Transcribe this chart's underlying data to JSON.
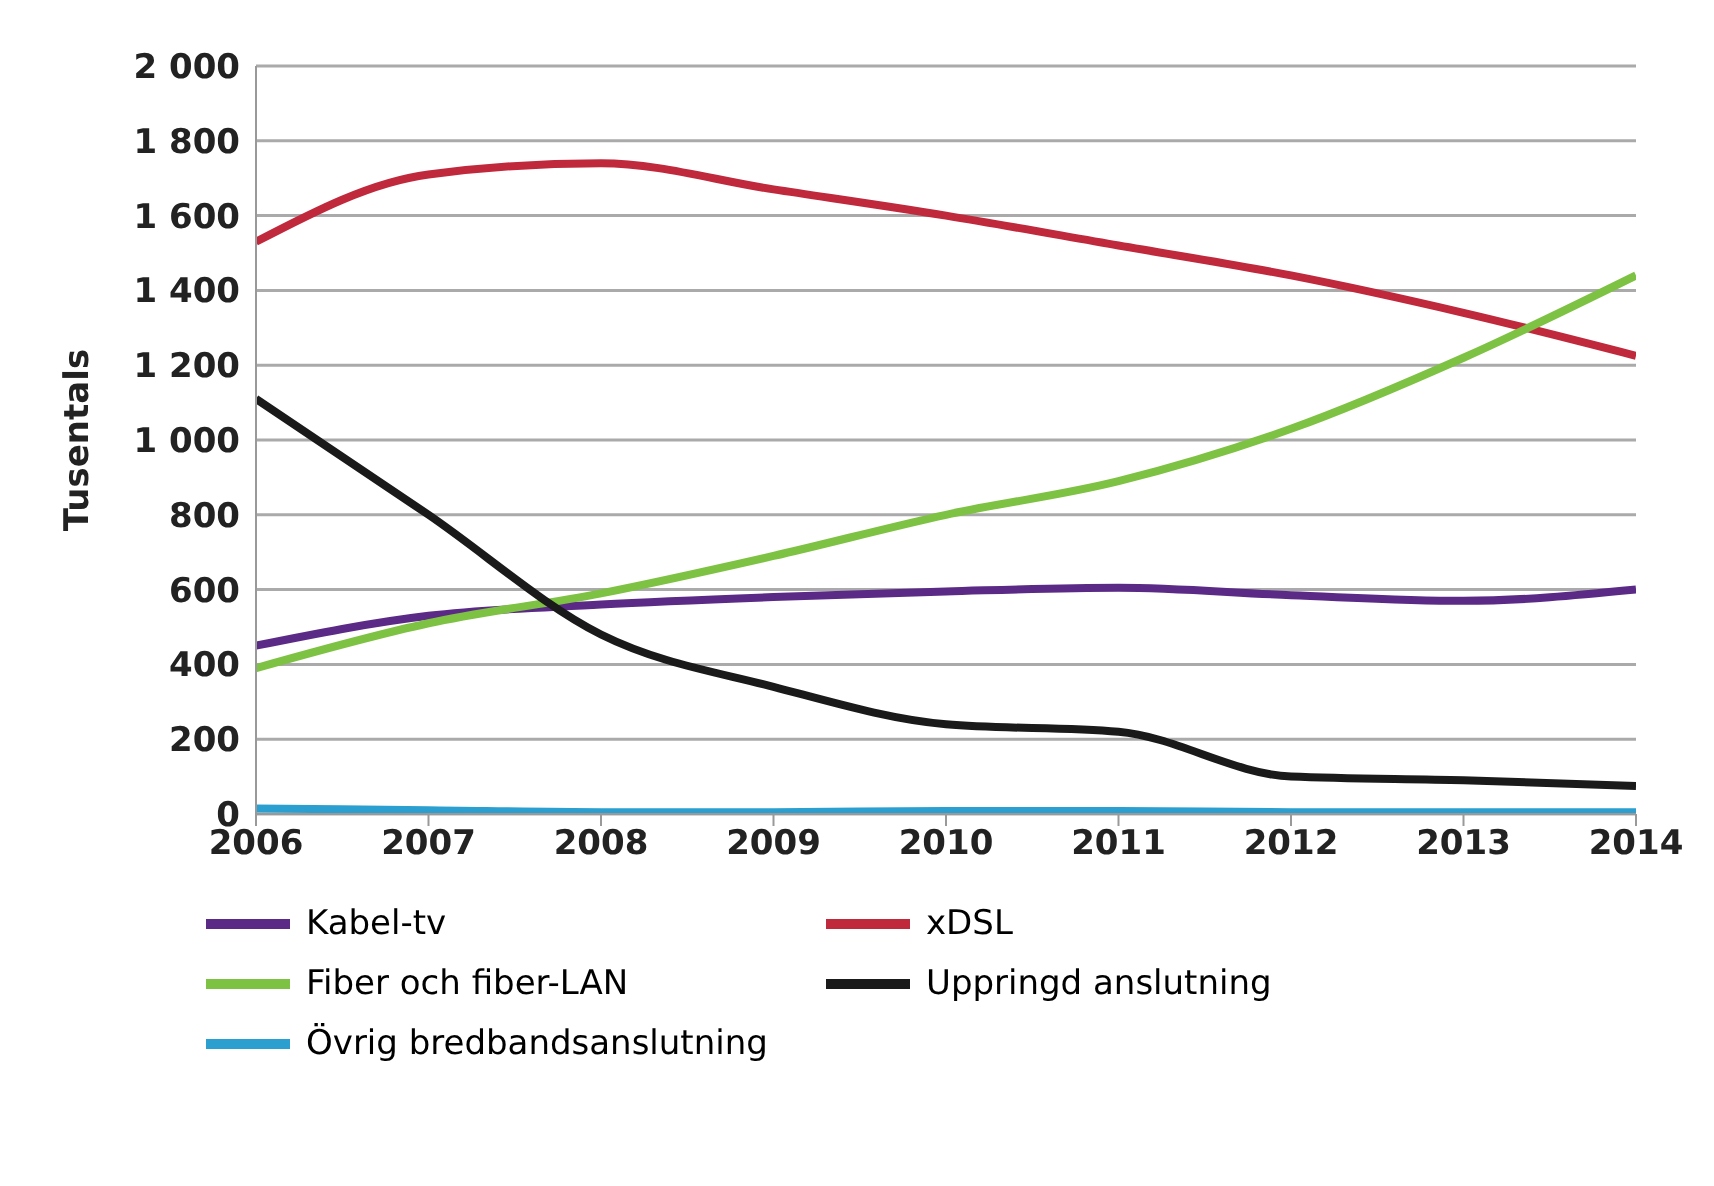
{
  "chart_data": {
    "type": "line",
    "ylabel": "Tusentals",
    "x": [
      2006,
      2007,
      2008,
      2009,
      2010,
      2011,
      2012,
      2013,
      2014
    ],
    "xlim": [
      2006,
      2014
    ],
    "xticks": [
      2006,
      2007,
      2008,
      2009,
      2010,
      2011,
      2012,
      2013,
      2014
    ],
    "ylim": [
      0,
      2000
    ],
    "yticks": [
      0,
      200,
      400,
      600,
      800,
      {
        "value": 1000,
        "label": "1 000"
      },
      {
        "value": 1200,
        "label": "1 200"
      },
      {
        "value": 1400,
        "label": "1 400"
      },
      {
        "value": 1600,
        "label": "1 600"
      },
      {
        "value": 1800,
        "label": "1 800"
      },
      {
        "value": 2000,
        "label": "2 000"
      }
    ],
    "grid": "y",
    "legend": "bottom",
    "marker": "none",
    "line_style": "solid",
    "series": [
      {
        "name": "Kabel-tv",
        "color": "#5b2a86",
        "values": [
          450,
          530,
          560,
          580,
          595,
          605,
          585,
          570,
          600
        ]
      },
      {
        "name": "xDSL",
        "color": "#c0283c",
        "values": [
          1530,
          1710,
          1740,
          1670,
          1600,
          1520,
          1440,
          1340,
          1225
        ]
      },
      {
        "name": "Fiber och fiber-LAN",
        "color": "#7dc242",
        "values": [
          390,
          510,
          590,
          690,
          800,
          890,
          1030,
          1220,
          1440
        ]
      },
      {
        "name": "Uppringd anslutning",
        "color": "#1a1a1a",
        "values": [
          1110,
          800,
          480,
          340,
          240,
          220,
          100,
          90,
          75
        ]
      },
      {
        "name": "Övrig bredbandsanslutning",
        "color": "#2b9fd0",
        "values": [
          15,
          10,
          5,
          5,
          8,
          8,
          5,
          5,
          5
        ]
      }
    ]
  }
}
